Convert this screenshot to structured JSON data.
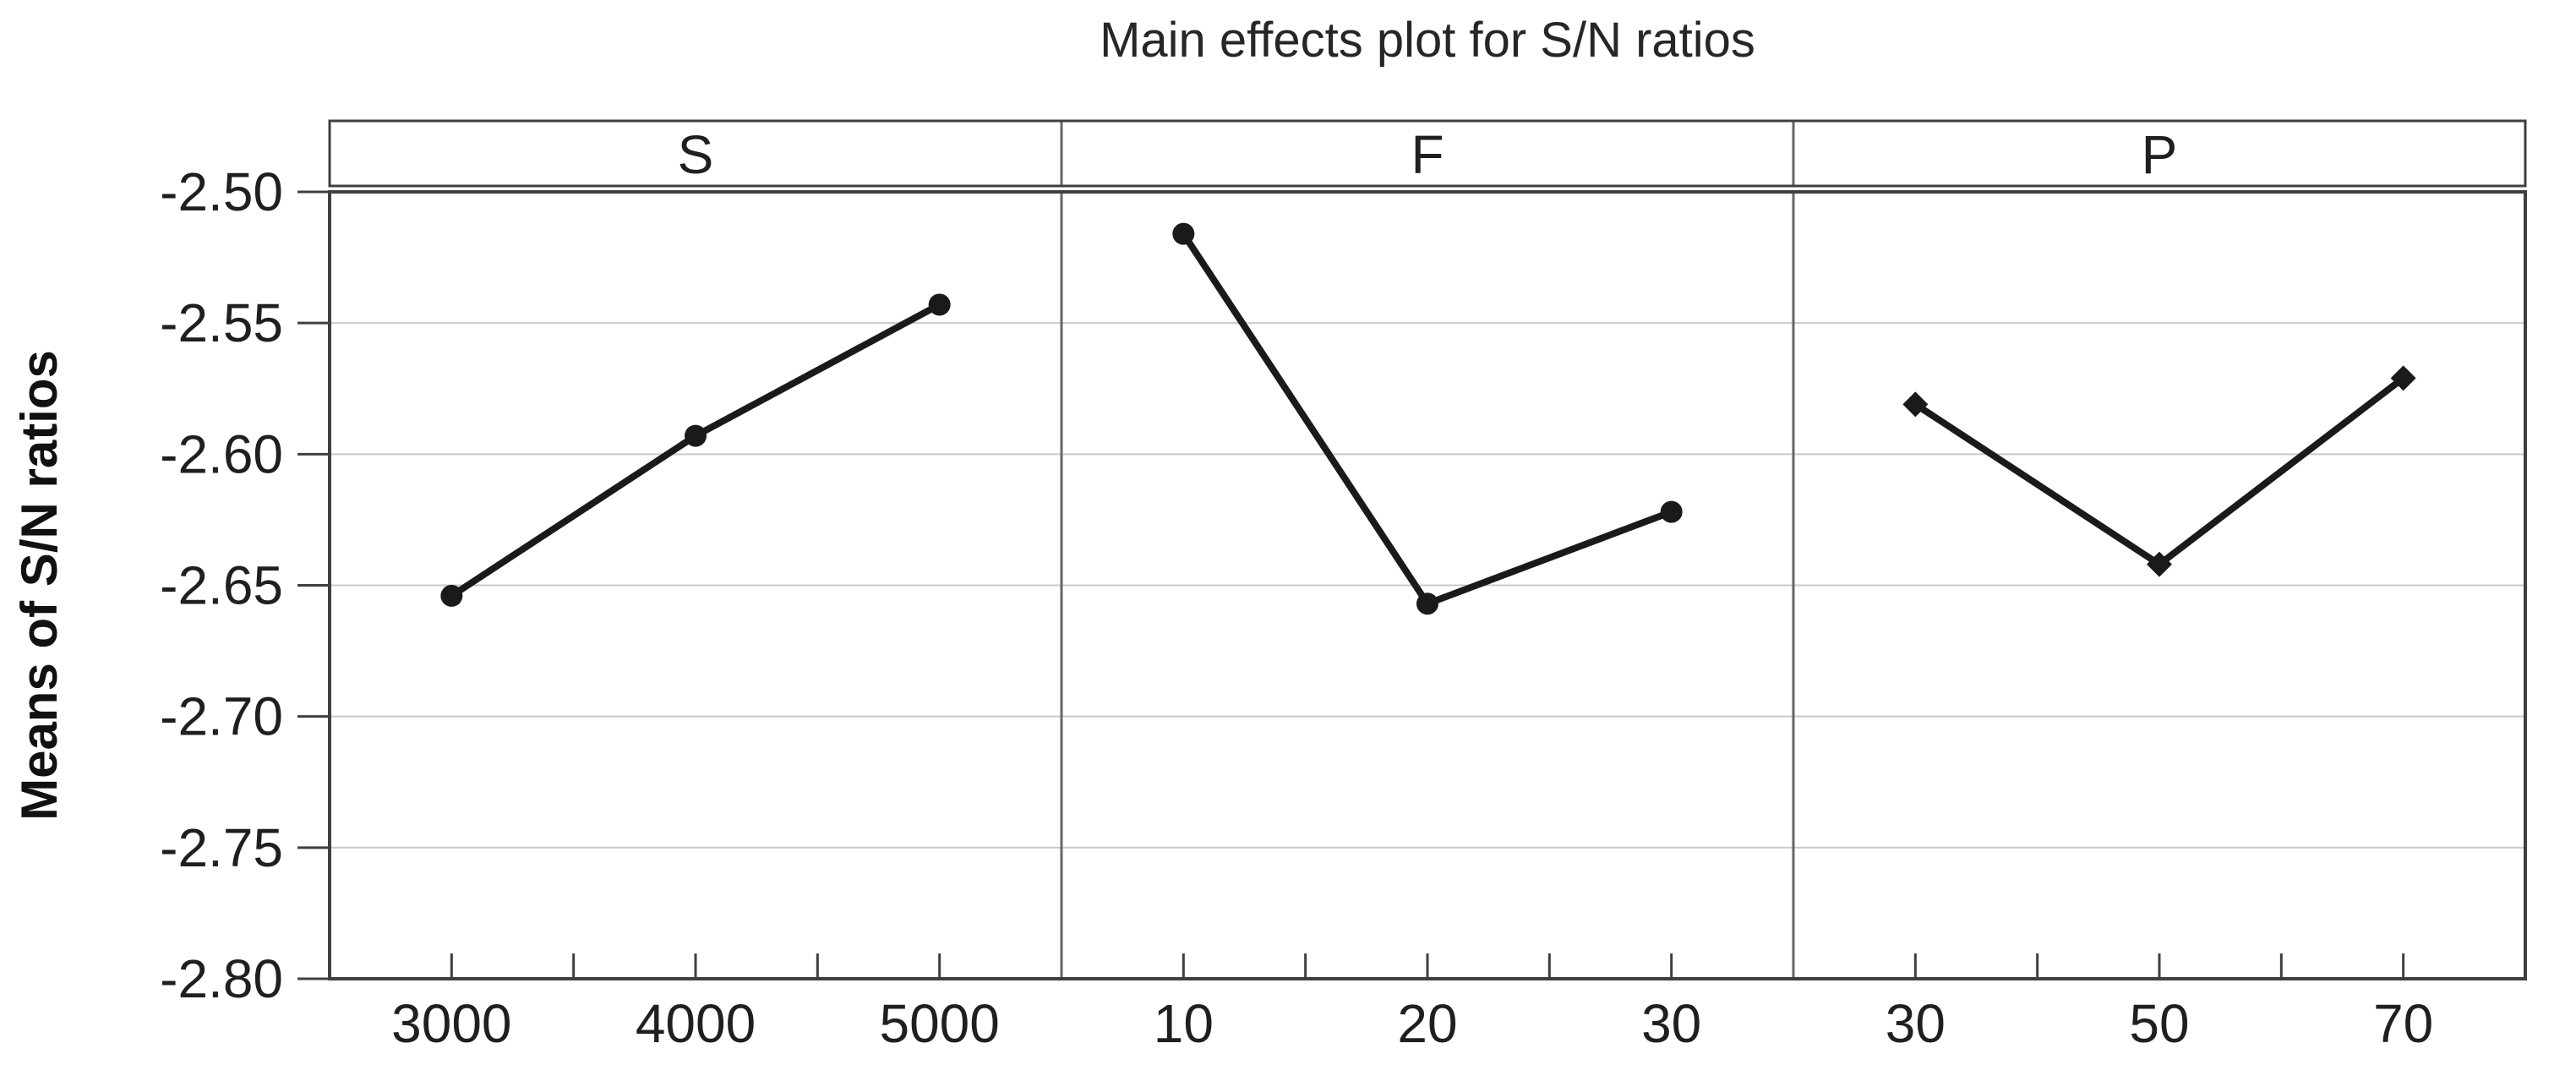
{
  "chart_data": {
    "type": "line",
    "title": "Main effects plot for S/N ratios",
    "ylabel": "Means of S/N ratios",
    "xlabel": "",
    "ylim": [
      -2.8,
      -2.5
    ],
    "y_ticks": [
      -2.5,
      -2.55,
      -2.6,
      -2.65,
      -2.7,
      -2.75,
      -2.8
    ],
    "y_tick_labels": [
      "-2.50",
      "-2.55",
      "-2.60",
      "-2.65",
      "-2.70",
      "-2.75",
      "-2.80"
    ],
    "grid": true,
    "legend": null,
    "panels": [
      {
        "label": "S",
        "marker": "circle",
        "x": [
          3000,
          4000,
          5000
        ],
        "x_labels": [
          "3000",
          "4000",
          "5000"
        ],
        "x_minor_ticks": [
          3500,
          4500
        ],
        "values": [
          -2.654,
          -2.593,
          -2.543
        ]
      },
      {
        "label": "F",
        "marker": "circle",
        "x": [
          10,
          20,
          30
        ],
        "x_labels": [
          "10",
          "20",
          "30"
        ],
        "x_minor_ticks": [
          15,
          25
        ],
        "values": [
          -2.516,
          -2.657,
          -2.622
        ]
      },
      {
        "label": "P",
        "marker": "diamond",
        "x": [
          30,
          50,
          70
        ],
        "x_labels": [
          "30",
          "50",
          "70"
        ],
        "x_minor_ticks": [
          40,
          60
        ],
        "values": [
          -2.581,
          -2.642,
          -2.571
        ]
      }
    ],
    "colors": {
      "series": "#1a1a1a",
      "grid": "#c9c9c9",
      "border": "#3f3f3f",
      "divider": "#666666",
      "text": "#1f1f1f",
      "background": "#ffffff"
    }
  }
}
